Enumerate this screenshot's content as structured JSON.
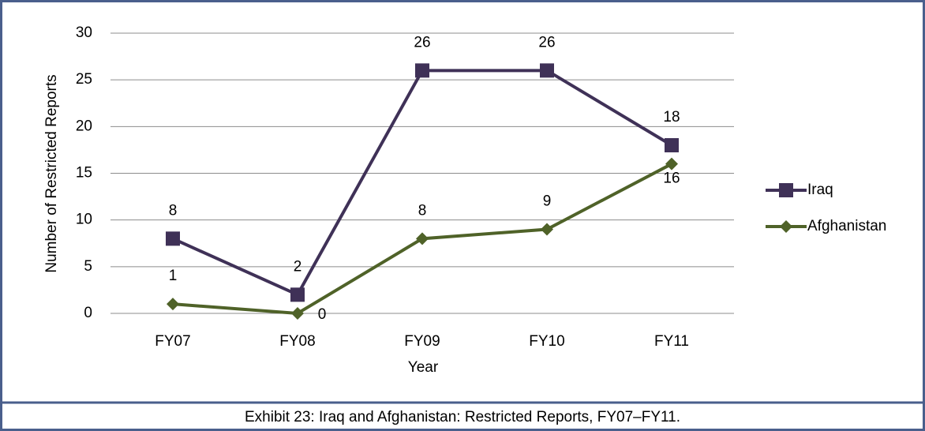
{
  "chart_data": {
    "type": "line",
    "caption": "Exhibit 23:  Iraq and Afghanistan: Restricted Reports, FY07–FY11.",
    "x_label": "Year",
    "y_label": "Number of Restricted Reports",
    "categories": [
      "FY07",
      "FY08",
      "FY09",
      "FY10",
      "FY11"
    ],
    "series": [
      {
        "name": "Iraq",
        "color": "#3f3157",
        "marker": "square",
        "values": [
          8,
          2,
          26,
          26,
          18
        ]
      },
      {
        "name": "Afghanistan",
        "color": "#4f6228",
        "marker": "diamond",
        "values": [
          1,
          0,
          8,
          9,
          16
        ]
      }
    ],
    "ylim": [
      0,
      30
    ],
    "yticks": [
      0,
      5,
      10,
      15,
      20,
      25,
      30
    ],
    "grid": true,
    "legend": "right"
  }
}
